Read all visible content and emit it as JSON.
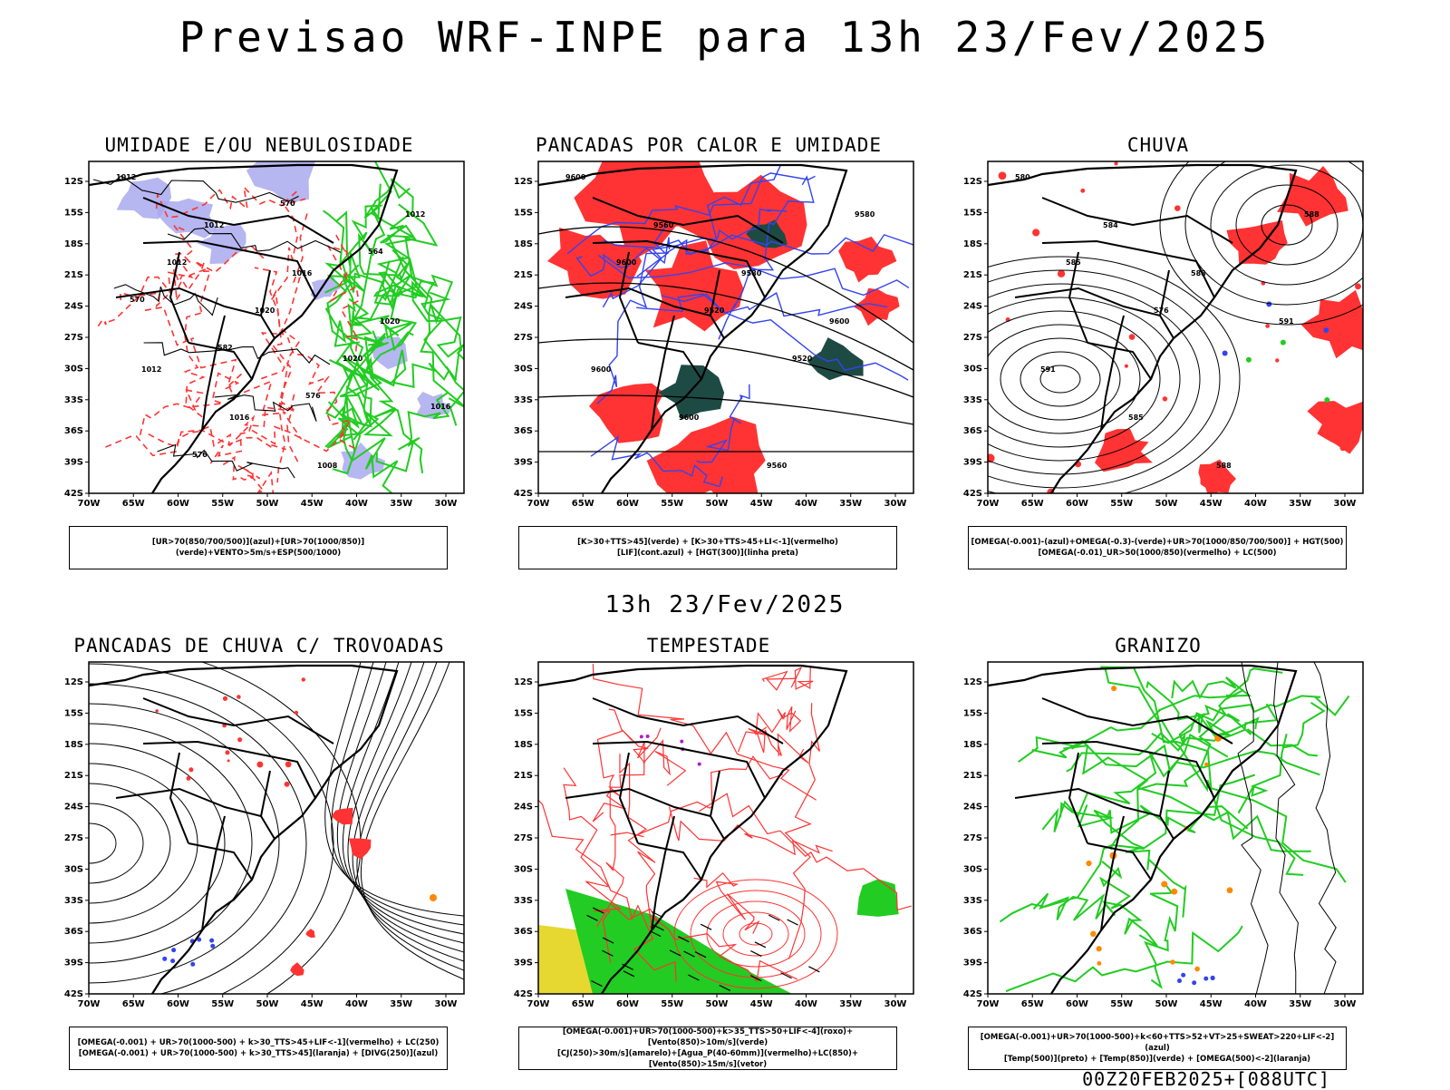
{
  "header": {
    "title": "Previsao WRF-INPE  para 13h 23/Fev/2025",
    "mid_title": "13h 23/Fev/2025",
    "footer": "00Z20FEB2025+[088UTC]"
  },
  "axes": {
    "lat_ticks": [
      "12S",
      "15S",
      "18S",
      "21S",
      "24S",
      "27S",
      "30S",
      "33S",
      "36S",
      "39S",
      "42S"
    ],
    "lon_ticks": [
      "70W",
      "65W",
      "60W",
      "55W",
      "50W",
      "45W",
      "40W",
      "35W",
      "30W"
    ]
  },
  "colors": {
    "humidity_blue": "#a9a9ee",
    "green": "#22cc22",
    "red": "#ff3333",
    "dark_teal": "#1e4a44",
    "blue": "#3344ee",
    "yellow": "#e6d830",
    "orange": "#ff8800",
    "purple": "#aa22cc"
  },
  "chart_data": [
    {
      "type": "map",
      "title": "UMIDADE E/OU NEBULOSIDADE",
      "legend": [
        "[UR>70(850/700/500)](azul)+[UR>70(1000/850)](verde)+VENTO>5m/s+ESP(500/1000)"
      ],
      "contour_labels": [
        "1012",
        "1012",
        "1016",
        "1020",
        "1012",
        "1016",
        "1008",
        "1012",
        "1012",
        "1020",
        "1020",
        "1016",
        "576",
        "570",
        "564",
        "570",
        "582",
        "576"
      ],
      "xlim": [
        -70,
        -28
      ],
      "ylim": [
        -42,
        -10
      ]
    },
    {
      "type": "map",
      "title": "PANCADAS POR CALOR E UMIDADE",
      "legend": [
        "[K>30+TTS>45](verde) + [K>30+TTS>45+LI<-1](vermelho)",
        "[LIF](cont.azul) + [HGT(300)](linha preta)"
      ],
      "contour_labels": [
        "9600",
        "9560",
        "9580",
        "9600",
        "9600",
        "9600",
        "9560",
        "9580",
        "9600",
        "9520",
        "9520"
      ],
      "xlim": [
        -70,
        -28
      ],
      "ylim": [
        -42,
        -10
      ]
    },
    {
      "type": "map",
      "title": "CHUVA",
      "legend": [
        "[OMEGA(-0.001)-(azul)+OMEGA(-0.3)-(verde)+UR>70(1000/850/700/500)] + HGT(500)",
        "[OMEGA(-0.01)_UR>50(1000/850)(vermelho) + LC(500)"
      ],
      "contour_labels": [
        "580",
        "584",
        "588",
        "591",
        "591",
        "585",
        "588",
        "588",
        "585",
        "576"
      ],
      "xlim": [
        -70,
        -28
      ],
      "ylim": [
        -42,
        -10
      ]
    },
    {
      "type": "map",
      "title": "PANCADAS DE CHUVA C/ TROVOADAS",
      "legend": [
        "[OMEGA(-0.001) + UR>70(1000-500) + k>30_TTS>45+LIF<-1](vermelho) + LC(250)",
        "[OMEGA(-0.001) + UR>70(1000-500) + k>30_TTS>45](laranja) + [DIVG(250)](azul)"
      ],
      "contour_labels": [],
      "xlim": [
        -70,
        -28
      ],
      "ylim": [
        -42,
        -10
      ]
    },
    {
      "type": "map",
      "title": "TEMPESTADE",
      "legend": [
        "[OMEGA(-0.001)+UR>70(1000-500)+k>35_TTS>50+LIF<-4](roxo)+[Vento(850)>10m/s](verde)",
        "[CJ(250)>30m/s](amarelo)+[Agua_P(40-60mm)](vermelho)+LC(850)+[Vento(850)>15m/s](vetor)"
      ],
      "contour_labels": [],
      "xlim": [
        -70,
        -28
      ],
      "ylim": [
        -42,
        -10
      ]
    },
    {
      "type": "map",
      "title": "GRANIZO",
      "legend": [
        "[OMEGA(-0.001)+UR>70(1000-500)+k<60+TTS>52+VT>25+SWEAT>220+LIF<-2](azul)",
        "[Temp(500)](preto) + [Temp(850)](verde) + [OMEGA(500)<-2](laranja)"
      ],
      "contour_labels": [],
      "xlim": [
        -70,
        -28
      ],
      "ylim": [
        -42,
        -10
      ]
    }
  ]
}
